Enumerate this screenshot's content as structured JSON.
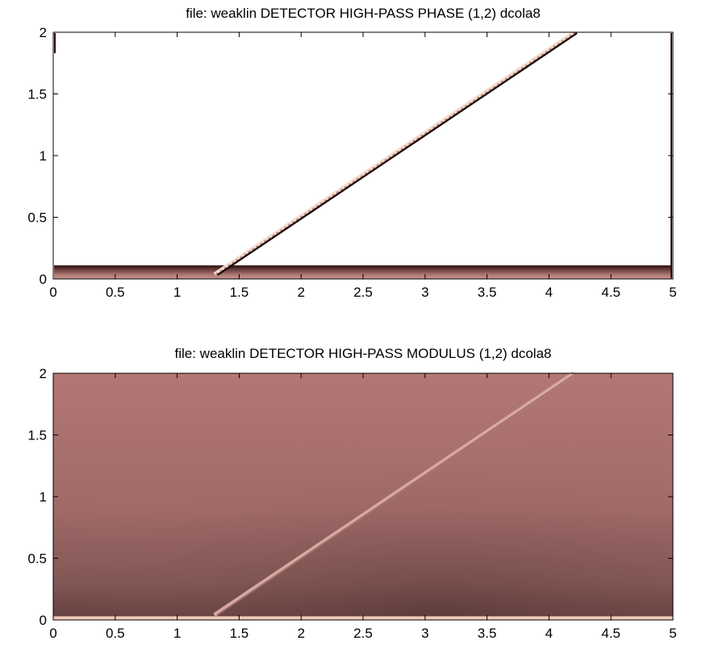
{
  "chart_data": [
    {
      "type": "heatmap",
      "title": "file:  weaklin   DETECTOR   HIGH-PASS PHASE (1,2)  dcola8",
      "xlabel": "",
      "ylabel": "",
      "xlim": [
        0,
        5
      ],
      "ylim": [
        0,
        2
      ],
      "xticks": [
        "0",
        "0.5",
        "1",
        "1.5",
        "2",
        "2.5",
        "3",
        "3.5",
        "4",
        "4.5",
        "5"
      ],
      "yticks": [
        "0",
        "0.5",
        "1",
        "1.5",
        "2"
      ],
      "colors": {
        "background": "#ffffff",
        "band": "#b07a76",
        "band_dark": "#2a0c08",
        "ridge_light": "#f3ddd0",
        "ridge_dark": "#1a0604"
      },
      "features": [
        {
          "name": "low-frequency band",
          "y_range": [
            0,
            0.11
          ]
        },
        {
          "name": "ridge",
          "x": [
            1.3,
            4.2
          ],
          "y": [
            0.04,
            2.0
          ]
        }
      ]
    },
    {
      "type": "heatmap",
      "title": "file:  weaklin   DETECTOR   HIGH-PASS MODULUS (1,2)  dcola8",
      "xlabel": "",
      "ylabel": "",
      "xlim": [
        0,
        5
      ],
      "ylim": [
        0,
        2
      ],
      "xticks": [
        "0",
        "0.5",
        "1",
        "1.5",
        "2",
        "2.5",
        "3",
        "3.5",
        "4",
        "4.5",
        "5"
      ],
      "yticks": [
        "0",
        "0.5",
        "1",
        "1.5",
        "2"
      ],
      "colors": {
        "field_light": "#b37774",
        "field_dark": "#5a3a38",
        "bottom_strip": "#f0c8b8",
        "ridge": "#d7a7a0"
      },
      "features": [
        {
          "name": "ridge",
          "x": [
            1.3,
            4.2
          ],
          "y": [
            0.04,
            2.0
          ]
        }
      ]
    }
  ]
}
